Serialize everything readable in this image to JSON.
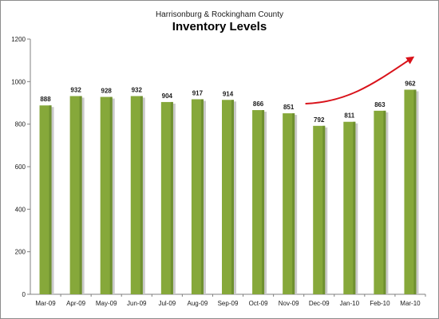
{
  "chart_data": {
    "type": "bar",
    "subtitle": "Harrisonburg & Rockingham County",
    "title": "Inventory Levels",
    "categories": [
      "Mar-09",
      "Apr-09",
      "May-09",
      "Jun-09",
      "Jul-09",
      "Aug-09",
      "Sep-09",
      "Oct-09",
      "Nov-09",
      "Dec-09",
      "Jan-10",
      "Feb-10",
      "Mar-10"
    ],
    "values": [
      888,
      932,
      928,
      932,
      904,
      917,
      914,
      866,
      851,
      792,
      811,
      863,
      962
    ],
    "ylim": [
      0,
      1200
    ],
    "yticks": [
      0,
      200,
      400,
      600,
      800,
      1000,
      1200
    ],
    "grid": false,
    "legend": "none",
    "annotation": "red upward trend arrow from Dec-09 to Mar-10",
    "colors": {
      "bar_fill": "#86a83a",
      "bar_shade": "#6f9030",
      "bar_shadow": "#c9c9c9",
      "arrow": "#d9121a",
      "axis": "#808080"
    }
  }
}
